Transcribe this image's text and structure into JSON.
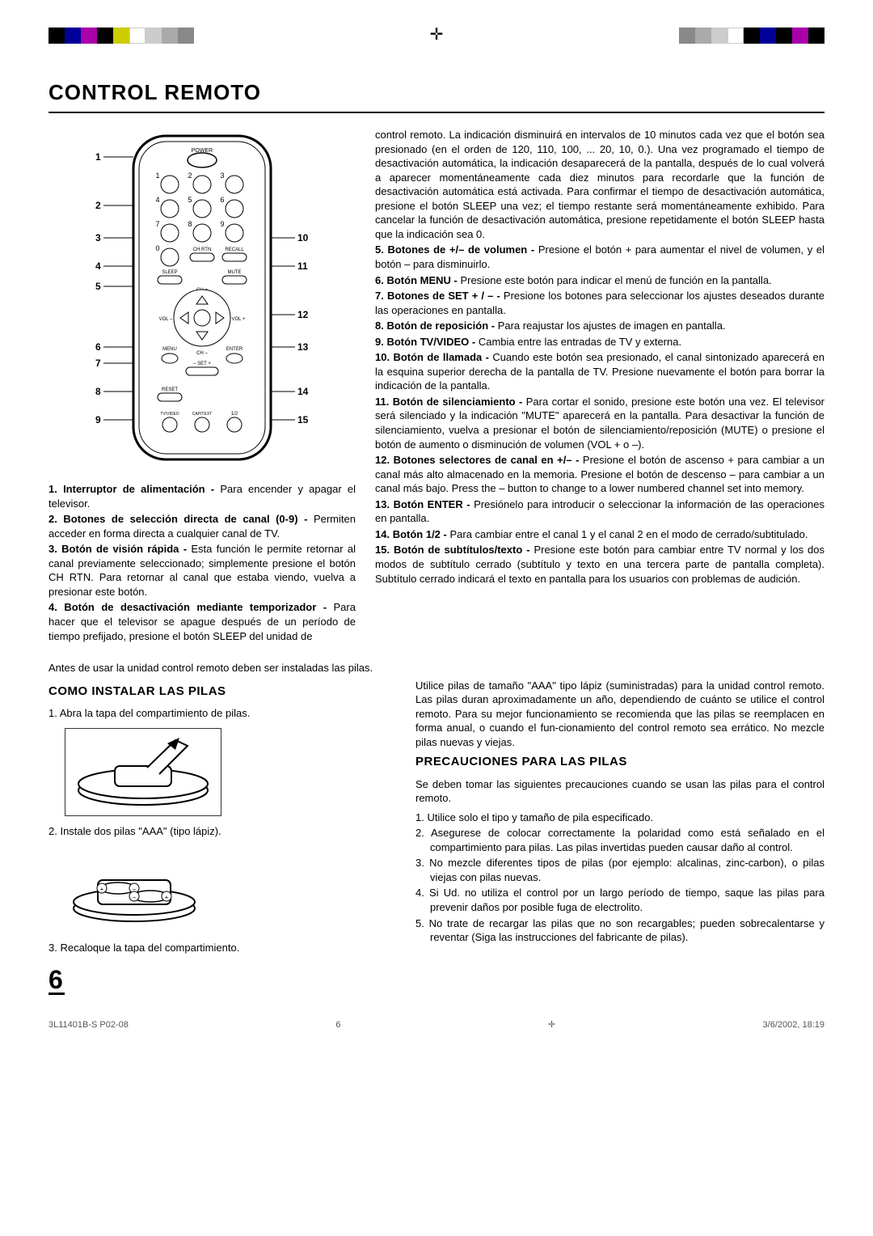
{
  "title": "CONTROL REMOTO",
  "remote": {
    "callouts_left": [
      "1",
      "2",
      "3",
      "4",
      "5",
      "6",
      "7",
      "8",
      "9"
    ],
    "callouts_right": [
      "10",
      "11",
      "12",
      "13",
      "14",
      "15"
    ],
    "labels": {
      "power": "POWER",
      "chrtn": "CH RTN",
      "recall": "RECALL",
      "sleep": "SLEEP",
      "mute": "MUTE",
      "chplus": "CH +",
      "chminus": "CH –",
      "volminus": "VOL –",
      "volplus": "VOL +",
      "menu": "MENU",
      "enter": "ENTER",
      "set": "– SET +",
      "reset": "RESET",
      "tvvideo": "TV/VIDEO",
      "captext": "CAP/TEXT",
      "half": "1/2"
    }
  },
  "items_left": [
    {
      "num": "1.",
      "label": "Interruptor de alimentación - ",
      "text": "Para encender y apagar el televisor."
    },
    {
      "num": "2.",
      "label": "Botones de selección directa de canal (0-9) - ",
      "text": "Permiten acceder en forma directa a cualquier canal de TV."
    },
    {
      "num": "3.",
      "label": "Botón de visión rápida - ",
      "text": "Esta función le permite retornar al canal previamente seleccionado; simplemente presione el botón CH RTN. Para retornar al canal que estaba viendo, vuelva a presionar este botón."
    },
    {
      "num": "4.",
      "label": "Botón de desactivación mediante temporizador - ",
      "text": "Para hacer que el televisor se apague después de un período de tiempo prefijado, presione el botón SLEEP del unidad de"
    }
  ],
  "items_right_intro": "control remoto. La indicación disminuirá en intervalos de 10 minutos cada vez que el botón sea presionado (en el orden de 120, 110, 100, ... 20, 10, 0.). Una vez programado el tiempo de desactivación automática, la indicación desaparecerá de la pantalla, después de lo cual volverá a aparecer momentáneamente cada diez minutos para recordarle que la función de desactivación automática está activada. Para confirmar el tiempo de desactivación automática, presione el botón SLEEP una vez; el tiempo restante será momentáneamente exhibido. Para cancelar la función de desactivación automática, presione repetidamente el botón SLEEP hasta que la indicación sea 0.",
  "items_right": [
    {
      "num": "5.",
      "label": "Botones de +/– de volumen - ",
      "text": "Presione el botón + para aumentar el nivel de volumen, y el botón – para disminuirlo."
    },
    {
      "num": "6.",
      "label": "Botón MENU - ",
      "text": "Presione este botón para indicar el menú de función en la pantalla."
    },
    {
      "num": "7.",
      "label": "Botones de SET + / – - ",
      "text": "Presione los botones para seleccionar los ajustes deseados durante las operaciones en pantalla."
    },
    {
      "num": "8.",
      "label": "Botón de reposición - ",
      "text": "Para reajustar los ajustes de imagen en pantalla."
    },
    {
      "num": "9.",
      "label": "Botón TV/VIDEO - ",
      "text": "Cambia entre las entradas de TV y externa."
    },
    {
      "num": "10.",
      "label": "Botón de llamada - ",
      "text": "Cuando este botón sea presionado, el canal sintonizado aparecerá en la esquina superior derecha de la pantalla de TV. Presione nuevamente el botón para borrar la indicación de la pantalla."
    },
    {
      "num": "11.",
      "label": "Botón de silenciamiento - ",
      "text": "Para cortar el sonido, presione este botón una vez. El televisor será silenciado y la indicación \"MUTE\" aparecerá en la pantalla. Para desactivar la función de silenciamiento, vuelva a presionar el botón de silenciamiento/reposición (MUTE) o presione el botón de aumento o disminución de volumen (VOL + o –)."
    },
    {
      "num": "12.",
      "label": "Botones selectores de canal en +/– - ",
      "text": "Presione el botón de ascenso + para cambiar a un canal más alto almacenado en la memoria. Presione el botón de descenso – para cambiar a un canal más bajo. Press the – button to change to a lower numbered channel set into memory."
    },
    {
      "num": "13.",
      "label": "Botón ENTER - ",
      "text": "Presiónelo para introducir o seleccionar la información de las operaciones en pantalla."
    },
    {
      "num": "14.",
      "label": "Botón 1/2 - ",
      "text": "Para cambiar entre el canal 1 y el canal 2 en el modo de cerrado/subtitulado."
    },
    {
      "num": "15.",
      "label": "Botón de subtítulos/texto - ",
      "text": "Presione este botón para cambiar entre TV normal y los dos modos de subtítulo cerrado (subtítulo y texto en una tercera parte de pantalla completa). Subtítulo cerrado indicará el texto en pantalla para los usuarios con problemas de audición."
    }
  ],
  "intro": "Antes de usar la unidad control remoto deben ser instaladas las pilas.",
  "install_title": "COMO INSTALAR LAS PILAS",
  "steps": [
    "1. Abra la tapa del compartimiento de pilas.",
    "2. Instale dos pilas \"AAA\" (tipo lápiz).",
    "3. Recaloque la tapa del compartimiento."
  ],
  "right_para": "Utilice pilas de tamaño \"AAA\" tipo lápiz (suministradas) para la unidad control remoto. Las pilas duran aproximadamente un año, dependiendo de cuánto se utilice el control remoto. Para su mejor funcionamiento se recomienda que las pilas se reemplacen en forma anual, o cuando el fun-cionamiento del control remoto sea errático. No mezcle pilas nuevas y viejas.",
  "prec_title": "PRECAUCIONES PARA LAS PILAS",
  "prec_intro": "Se deben tomar las siguientes precauciones cuando se usan las pilas para el control remoto.",
  "precautions": [
    "1. Utilice solo el tipo y tamaño de pila especificado.",
    "2. Asegurese de colocar correctamente la polaridad como está señalado en el compartimiento para pilas. Las pilas invertidas pueden causar daño al control.",
    "3. No mezcle diferentes tipos de pilas (por ejemplo: alcalinas, zinc-carbon), o pilas viejas con pilas nuevas.",
    "4. Si Ud. no utiliza el control por un largo período de tiempo, saque las pilas para prevenir daños por posible fuga de electrolito.",
    "5. No trate de recargar las pilas que no son recargables; pueden sobrecalentarse y reventar (Siga las instrucciones del fabricante de pilas)."
  ],
  "page_num": "6",
  "footer_left": "3L11401B-S P02-08",
  "footer_center": "6",
  "footer_right": "3/6/2002, 18:19",
  "colorbar": [
    "#000000",
    "#00a0c8",
    "#d040a0",
    "#000000",
    "#f0e000",
    "#ffffff",
    "#d0d0d0",
    "#b0b0b0",
    "#909090"
  ],
  "colorbar_r": [
    "#909090",
    "#b0b0b0",
    "#d0d0d0",
    "#ffffff",
    "#000000",
    "#00a0c8",
    "#000000",
    "#d040a0",
    "#000000"
  ]
}
